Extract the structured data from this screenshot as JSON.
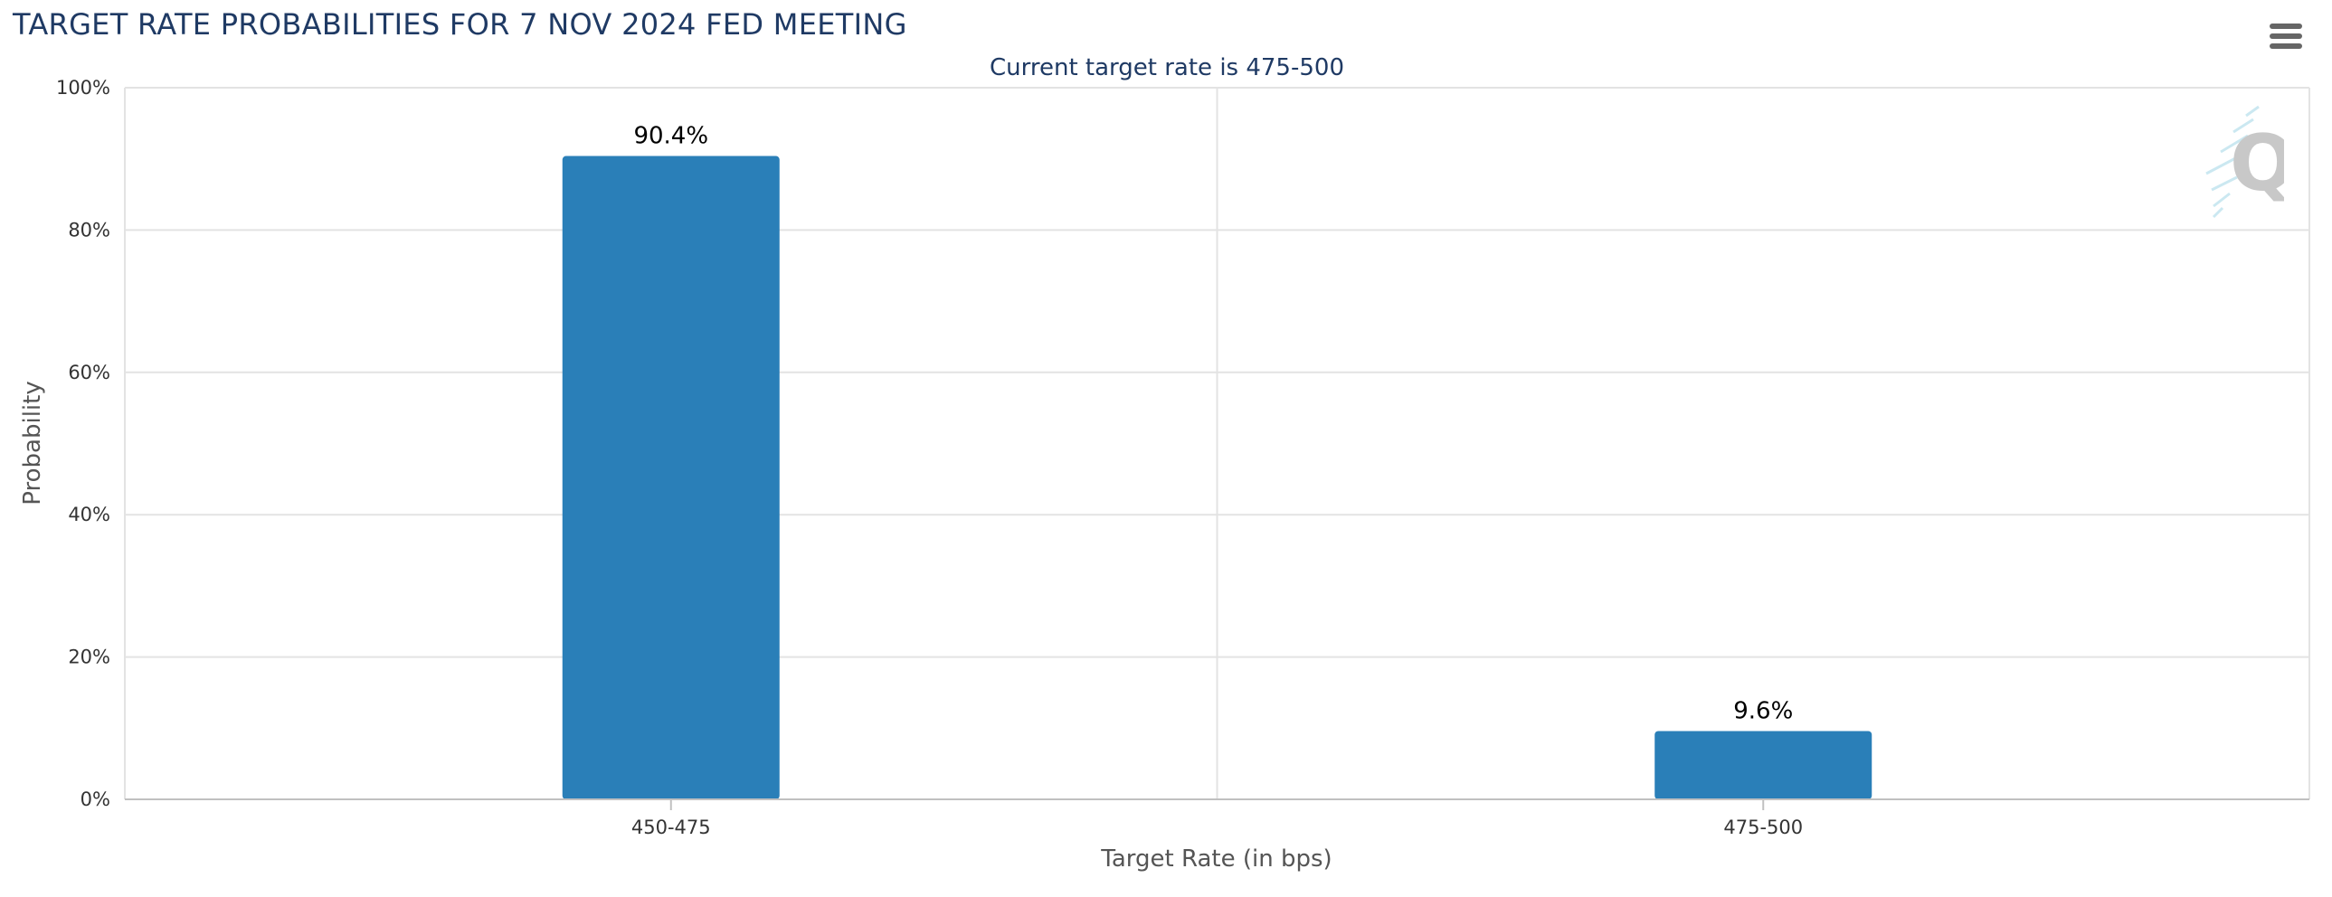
{
  "chart_data": {
    "type": "bar",
    "title": "TARGET RATE PROBABILITIES FOR 7 NOV 2024 FED MEETING",
    "subtitle": "Current target rate is 475-500",
    "xlabel": "Target Rate (in bps)",
    "ylabel": "Probability",
    "categories": [
      "450-475",
      "475-500"
    ],
    "values": [
      90.4,
      9.6
    ],
    "data_labels": [
      "90.4%",
      "9.6%"
    ],
    "ylim": [
      0,
      100
    ],
    "yticks": [
      "0%",
      "20%",
      "40%",
      "60%",
      "80%",
      "100%"
    ],
    "grid": true,
    "legend": "none",
    "bar_color": "#2a7fb8"
  }
}
